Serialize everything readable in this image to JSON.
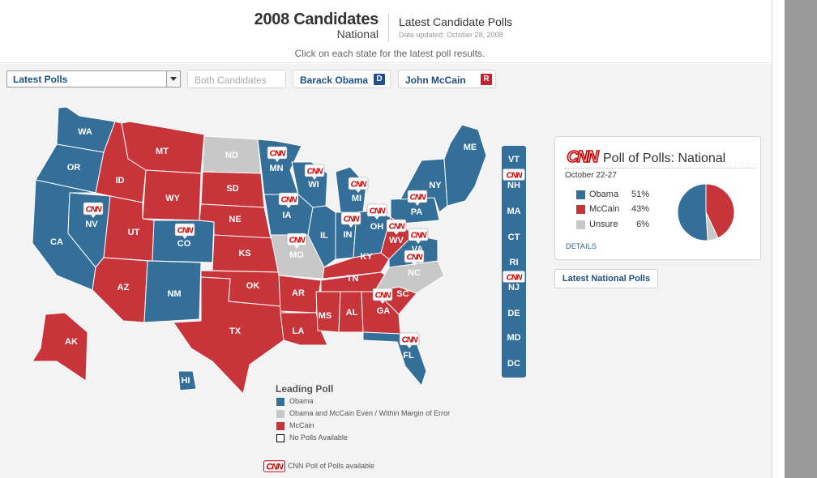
{
  "header": {
    "title": "2008 Candidates",
    "subtitle": "National",
    "polls_title": "Latest Candidate Polls",
    "date_updated": "Date updated: October 28, 2008",
    "instruction": "Click on each state for the latest poll results."
  },
  "controls": {
    "select_value": "Latest Polls",
    "both_label": "Both Candidates",
    "obama_label": "Barack Obama",
    "obama_badge": "D",
    "mccain_label": "John McCain",
    "mccain_badge": "R"
  },
  "colors": {
    "obama": "#336f99",
    "mccain": "#c7343a",
    "even": "#c8c8c8",
    "cnn_red": "#cc0000"
  },
  "map": {
    "states": [
      {
        "abbr": "WA",
        "lead": "obama"
      },
      {
        "abbr": "OR",
        "lead": "obama"
      },
      {
        "abbr": "CA",
        "lead": "obama"
      },
      {
        "abbr": "NV",
        "lead": "obama",
        "cnn": true
      },
      {
        "abbr": "ID",
        "lead": "mccain"
      },
      {
        "abbr": "MT",
        "lead": "mccain"
      },
      {
        "abbr": "WY",
        "lead": "mccain"
      },
      {
        "abbr": "UT",
        "lead": "mccain"
      },
      {
        "abbr": "CO",
        "lead": "obama",
        "cnn": true
      },
      {
        "abbr": "AZ",
        "lead": "mccain"
      },
      {
        "abbr": "NM",
        "lead": "obama"
      },
      {
        "abbr": "ND",
        "lead": "even"
      },
      {
        "abbr": "SD",
        "lead": "mccain"
      },
      {
        "abbr": "NE",
        "lead": "mccain"
      },
      {
        "abbr": "KS",
        "lead": "mccain"
      },
      {
        "abbr": "OK",
        "lead": "mccain"
      },
      {
        "abbr": "TX",
        "lead": "mccain"
      },
      {
        "abbr": "MN",
        "lead": "obama",
        "cnn": true
      },
      {
        "abbr": "IA",
        "lead": "obama",
        "cnn": true
      },
      {
        "abbr": "MO",
        "lead": "even",
        "cnn": true
      },
      {
        "abbr": "AR",
        "lead": "mccain"
      },
      {
        "abbr": "LA",
        "lead": "mccain"
      },
      {
        "abbr": "WI",
        "lead": "obama",
        "cnn": true
      },
      {
        "abbr": "IL",
        "lead": "obama"
      },
      {
        "abbr": "MI",
        "lead": "obama",
        "cnn": true
      },
      {
        "abbr": "IN",
        "lead": "obama",
        "cnn": true
      },
      {
        "abbr": "OH",
        "lead": "obama",
        "cnn": true
      },
      {
        "abbr": "KY",
        "lead": "mccain"
      },
      {
        "abbr": "TN",
        "lead": "mccain"
      },
      {
        "abbr": "MS",
        "lead": "mccain"
      },
      {
        "abbr": "AL",
        "lead": "mccain"
      },
      {
        "abbr": "GA",
        "lead": "mccain",
        "cnn": true
      },
      {
        "abbr": "FL",
        "lead": "obama",
        "cnn": true
      },
      {
        "abbr": "SC",
        "lead": "mccain"
      },
      {
        "abbr": "NC",
        "lead": "even",
        "cnn": true
      },
      {
        "abbr": "VA",
        "lead": "obama",
        "cnn": true
      },
      {
        "abbr": "WV",
        "lead": "mccain"
      },
      {
        "abbr": "PA",
        "lead": "obama",
        "cnn": true
      },
      {
        "abbr": "NY",
        "lead": "obama"
      },
      {
        "abbr": "ME",
        "lead": "obama"
      },
      {
        "abbr": "AK",
        "lead": "mccain"
      },
      {
        "abbr": "HI",
        "lead": "obama"
      }
    ],
    "small_states": [
      {
        "abbr": "VT",
        "cnn": false
      },
      {
        "abbr": "NH",
        "cnn": true
      },
      {
        "abbr": "MA",
        "cnn": false
      },
      {
        "abbr": "CT",
        "cnn": false
      },
      {
        "abbr": "RI",
        "cnn": false
      },
      {
        "abbr": "NJ",
        "cnn": true
      },
      {
        "abbr": "DE",
        "cnn": false
      },
      {
        "abbr": "MD",
        "cnn": false
      },
      {
        "abbr": "DC",
        "cnn": false
      }
    ],
    "cnn_logo_text": "CNN"
  },
  "poll_of_polls": {
    "logo": "CNN",
    "title": "Poll of Polls: National",
    "date_range": "October 22-27",
    "rows": [
      {
        "name": "Obama",
        "value": "51%",
        "pct": 51,
        "color": "#336f99"
      },
      {
        "name": "McCain",
        "value": "43%",
        "pct": 43,
        "color": "#c7343a"
      },
      {
        "name": "Unsure",
        "value": "6%",
        "pct": 6,
        "color": "#c8c8c8"
      }
    ],
    "details_label": "DETAILS"
  },
  "national_button": "Latest National Polls",
  "legend": {
    "title": "Leading Poll",
    "items": [
      {
        "label": "Obama",
        "color": "#336f99"
      },
      {
        "label": "Obama and McCain Even / Within Margin of Error",
        "color": "#c8c8c8"
      },
      {
        "label": "McCain",
        "color": "#c7343a"
      },
      {
        "label": "No Polls Available",
        "color": "#ffffff"
      }
    ],
    "cnn_note": "CNN Poll of Polls available"
  }
}
